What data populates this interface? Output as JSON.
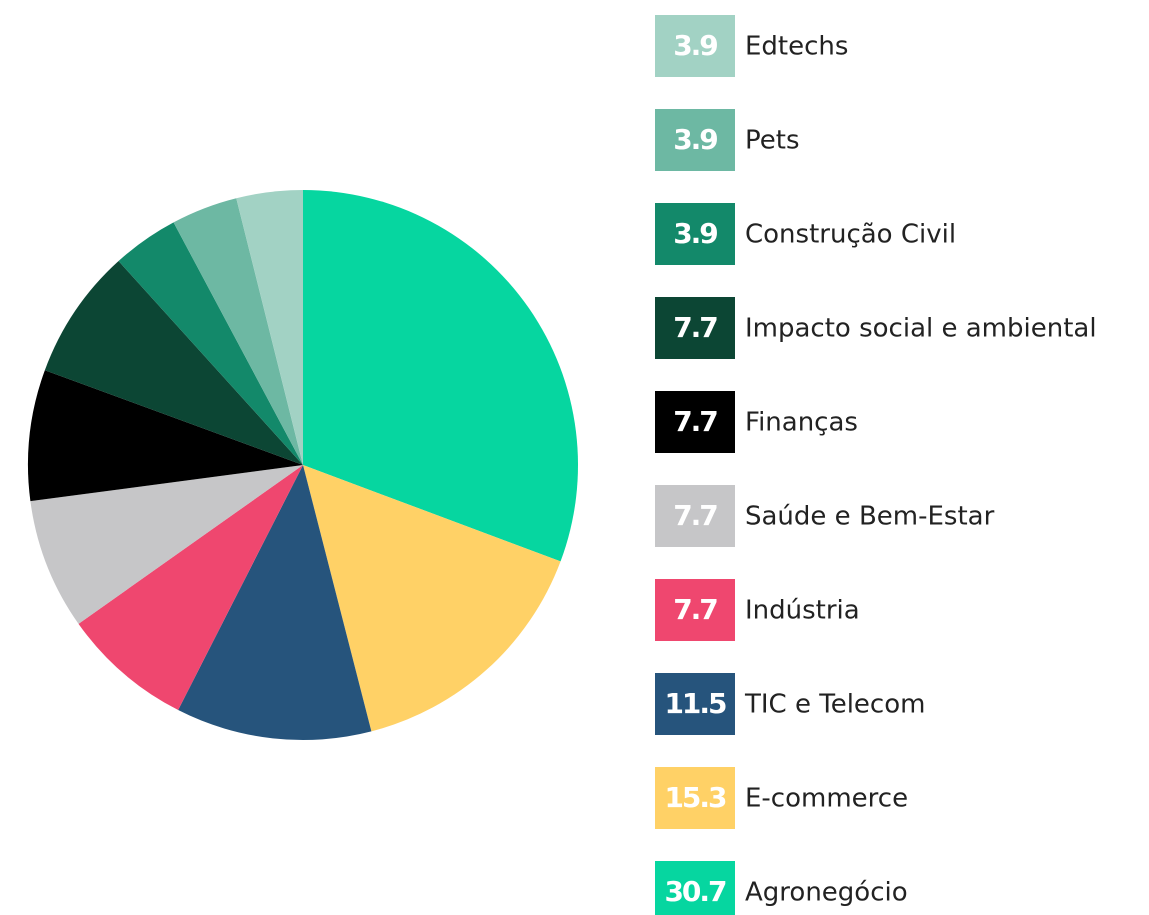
{
  "chart_data": {
    "type": "pie",
    "categories": [
      "Agronegócio",
      "E-commerce",
      "TIC e Telecom",
      "Indústria",
      "Saúde e Bem-Estar",
      "Finanças",
      "Impacto social e ambiental",
      "Construção Civil",
      "Pets",
      "Edtechs"
    ],
    "values": [
      30.7,
      15.3,
      11.5,
      7.7,
      7.7,
      7.7,
      7.7,
      3.9,
      3.9,
      3.9
    ],
    "colors": [
      "#06d6a0",
      "#ffd166",
      "#26547c",
      "#ef476f",
      "#c6c6c8",
      "#000000",
      "#0c4634",
      "#13896a",
      "#6db8a3",
      "#a2d2c4"
    ]
  }
}
